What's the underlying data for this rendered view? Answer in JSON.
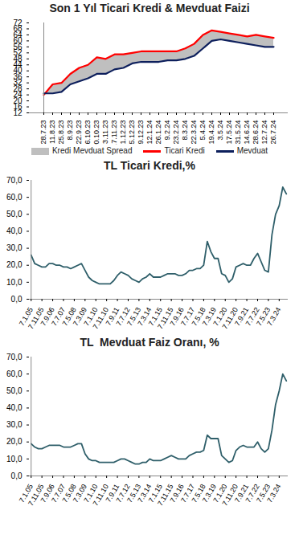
{
  "chart_data": [
    {
      "type": "line",
      "title": "Son 1 Yıl Ticari Kredi & Mevduat Faizi",
      "x": [
        "28.7.23",
        "11.8.23",
        "25.8.23",
        "8.9.23",
        "22.9.23",
        "6.10.23",
        "20.10.23",
        "3.11.23",
        "17.11.23",
        "1.12.23",
        "15.12.23",
        "29.12.23",
        "12.1.24",
        "26.1.24",
        "9.2.24",
        "23.2.24",
        "8.3.24",
        "22.3.24",
        "5.4.24",
        "19.4.24",
        "3.5.24",
        "17.5.24",
        "31.5.24",
        "14.6.24",
        "28.6.24",
        "12.7.24",
        "26.7.24"
      ],
      "series": [
        {
          "name": "Ticari Kredi",
          "color": "#ff0000",
          "values": [
            24,
            31,
            32,
            38,
            42,
            44,
            49,
            48,
            51,
            51,
            52,
            53,
            53,
            53,
            53,
            53,
            55,
            58,
            64,
            67,
            66,
            65,
            64,
            63,
            64,
            63,
            62
          ]
        },
        {
          "name": "Mevduat",
          "color": "#0d1f5c",
          "values": [
            25,
            25,
            26,
            31,
            33,
            35,
            38,
            38,
            41,
            42,
            45,
            46,
            46,
            46,
            47,
            47,
            48,
            50,
            55,
            60,
            61,
            60,
            59,
            58,
            57,
            56,
            56
          ]
        }
      ],
      "spread": {
        "name": "Kredi Mevduat Spread",
        "color": "#bfbfbf"
      },
      "ylim": [
        12,
        72
      ],
      "yticks": [
        12,
        16,
        20,
        24,
        28,
        32,
        36,
        40,
        44,
        48,
        52,
        56,
        60,
        64,
        68,
        72
      ],
      "grid": false,
      "legend": "bottom"
    },
    {
      "type": "line",
      "title": "TL Ticari Kredi,%",
      "x": [
        "7.1.05",
        null,
        null,
        "7.11.05",
        null,
        null,
        "7.9.06",
        null,
        null,
        "7.7.07",
        null,
        null,
        "7.5.08",
        null,
        null,
        "7.3.09",
        null,
        null,
        "7.1.10",
        null,
        null,
        "7.11.10",
        null,
        null,
        "7.9.11",
        null,
        null,
        "7.7.12",
        null,
        null,
        "7.5.13",
        null,
        null,
        "7.3.14",
        null,
        null,
        "7.1.15",
        null,
        null,
        "7.11.15",
        null,
        null,
        "7.9.16",
        null,
        null,
        "7.7.17",
        null,
        null,
        "7.5.18",
        null,
        null,
        "7.3.19",
        null,
        null,
        "7.1.20",
        null,
        null,
        "7.11.20",
        null,
        null,
        "7.9.21",
        null,
        null,
        "7.7.22",
        null,
        null,
        "7.5.23",
        null,
        null,
        "7.3.24",
        null,
        null
      ],
      "series": [
        {
          "name": "TL Ticari Kredi",
          "color": "#2f5f6a",
          "values": [
            26,
            21,
            20,
            19,
            19,
            21,
            21,
            20,
            20,
            19,
            19,
            18,
            19,
            20,
            21,
            17,
            13,
            11,
            10,
            9,
            9,
            9,
            9,
            11,
            14,
            16,
            15,
            14,
            12,
            11,
            10,
            12,
            13,
            15,
            13,
            13,
            13,
            14,
            15,
            15,
            15,
            14,
            14,
            15,
            17,
            17,
            18,
            18,
            20,
            34,
            28,
            24,
            24,
            15,
            14,
            10,
            12,
            19,
            20,
            21,
            20,
            20,
            24,
            27,
            22,
            17,
            16,
            38,
            50,
            55,
            66,
            62
          ]
        }
      ],
      "ylim": [
        0,
        70
      ],
      "yticks": [
        {
          "value": 0,
          "label": "0,0"
        },
        {
          "value": 10,
          "label": "10,0"
        },
        {
          "value": 20,
          "label": "20,0"
        },
        {
          "value": 30,
          "label": "30,0"
        },
        {
          "value": 40,
          "label": "40,0"
        },
        {
          "value": 50,
          "label": "50,0"
        },
        {
          "value": 60,
          "label": "60,0"
        },
        {
          "value": 70,
          "label": "70,0"
        }
      ],
      "grid": false
    },
    {
      "type": "line",
      "title": "TL  Mevduat Faiz Oranı, %",
      "x": [
        "7.1.05",
        null,
        null,
        "7.11.05",
        null,
        null,
        "7.9.06",
        null,
        null,
        "7.7.07",
        null,
        null,
        "7.5.08",
        null,
        null,
        "7.3.09",
        null,
        null,
        "7.1.10",
        null,
        null,
        "7.11.10",
        null,
        null,
        "7.9.11",
        null,
        null,
        "7.7.12",
        null,
        null,
        "7.5.13",
        null,
        null,
        "7.3.14",
        null,
        null,
        "7.1.15",
        null,
        null,
        "7.11.15",
        null,
        null,
        "7.9.16",
        null,
        null,
        "7.7.17",
        null,
        null,
        "7.5.18",
        null,
        null,
        "7.3.19",
        null,
        null,
        "7.1.20",
        null,
        null,
        "7.11.20",
        null,
        null,
        "7.9.21",
        null,
        null,
        "7.7.22",
        null,
        null,
        "7.5.23",
        null,
        null,
        "7.3.24",
        null,
        null
      ],
      "series": [
        {
          "name": "TL Mevduat Faiz Oranı",
          "color": "#2f5f6a",
          "values": [
            19,
            17,
            16,
            16,
            17,
            18,
            18,
            18,
            18,
            17,
            17,
            17,
            18,
            19,
            19,
            13,
            10,
            9,
            9,
            8,
            8,
            8,
            8,
            8,
            9,
            10,
            10,
            9,
            8,
            7,
            7,
            8,
            8,
            10,
            9,
            9,
            9,
            10,
            11,
            12,
            11,
            10,
            10,
            10,
            12,
            13,
            14,
            14,
            15,
            24,
            22,
            22,
            22,
            12,
            10,
            8,
            9,
            15,
            17,
            18,
            17,
            17,
            17,
            20,
            16,
            14,
            16,
            27,
            42,
            50,
            60,
            56
          ]
        }
      ],
      "ylim": [
        0,
        70
      ],
      "yticks": [
        {
          "value": 0,
          "label": "0,0"
        },
        {
          "value": 10,
          "label": "10,0"
        },
        {
          "value": 20,
          "label": "20,0"
        },
        {
          "value": 30,
          "label": "30,0"
        },
        {
          "value": 40,
          "label": "40,0"
        },
        {
          "value": 50,
          "label": "50,0"
        },
        {
          "value": 60,
          "label": "60,0"
        },
        {
          "value": 70,
          "label": "70,0"
        }
      ],
      "grid": false
    }
  ]
}
